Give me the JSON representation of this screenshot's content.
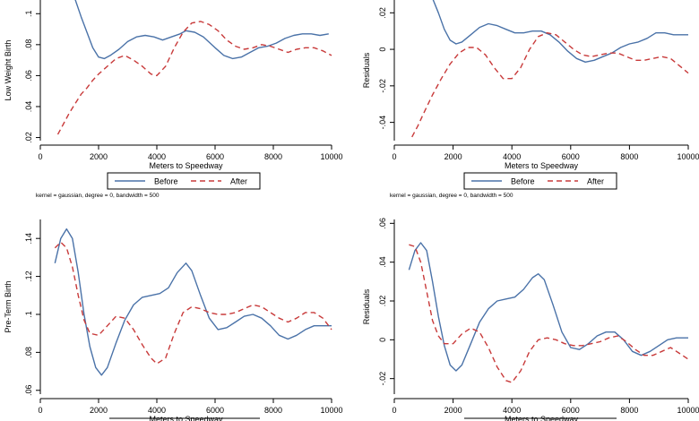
{
  "colors": {
    "before": "#4a72a8",
    "after": "#c83a3a",
    "axis": "#000000",
    "legend_border": "#000000"
  },
  "chart_data": [
    {
      "type": "line",
      "ylabel": "Low Weight Birth",
      "xlabel": "Meters to Speedway",
      "xlim": [
        0,
        10000
      ],
      "ylim": [
        0.018,
        0.11
      ],
      "xticks": [
        0,
        2000,
        4000,
        6000,
        8000,
        10000
      ],
      "xtick_labels": [
        "0",
        "2000",
        "4000",
        "6000",
        "8000",
        "10000"
      ],
      "yticks": [
        0.02,
        0.04,
        0.06,
        0.08,
        0.1
      ],
      "ytick_labels": [
        ".02",
        ".04",
        ".06",
        ".08",
        ".1"
      ],
      "legend": {
        "entries": [
          "Before",
          "After"
        ]
      },
      "note": "kernel = gaussian, degree = 0, bandwidth = 500",
      "series": [
        {
          "name": "Before",
          "style": "solid",
          "x": [
            1200,
            1400,
            1600,
            1800,
            2000,
            2200,
            2400,
            2700,
            3000,
            3300,
            3600,
            3900,
            4200,
            4500,
            4800,
            5000,
            5300,
            5600,
            6000,
            6300,
            6600,
            6900,
            7200,
            7500,
            7800,
            8100,
            8400,
            8700,
            9000,
            9300,
            9600,
            9900
          ],
          "y": [
            0.109,
            0.098,
            0.088,
            0.078,
            0.072,
            0.071,
            0.073,
            0.077,
            0.082,
            0.085,
            0.086,
            0.085,
            0.083,
            0.085,
            0.087,
            0.089,
            0.088,
            0.085,
            0.078,
            0.073,
            0.071,
            0.072,
            0.075,
            0.078,
            0.079,
            0.081,
            0.084,
            0.086,
            0.087,
            0.087,
            0.086,
            0.087
          ]
        },
        {
          "name": "After",
          "style": "dashed",
          "x": [
            600,
            800,
            1000,
            1200,
            1400,
            1600,
            1800,
            2000,
            2300,
            2600,
            2900,
            3200,
            3500,
            3800,
            4000,
            4300,
            4600,
            4900,
            5200,
            5500,
            5800,
            6100,
            6400,
            6700,
            7000,
            7300,
            7600,
            7900,
            8200,
            8500,
            8800,
            9100,
            9400,
            9700,
            10000
          ],
          "y": [
            0.022,
            0.029,
            0.036,
            0.042,
            0.048,
            0.052,
            0.057,
            0.061,
            0.066,
            0.071,
            0.073,
            0.07,
            0.066,
            0.061,
            0.06,
            0.066,
            0.078,
            0.088,
            0.094,
            0.095,
            0.093,
            0.089,
            0.083,
            0.079,
            0.077,
            0.078,
            0.08,
            0.079,
            0.077,
            0.075,
            0.077,
            0.078,
            0.078,
            0.076,
            0.073
          ]
        }
      ]
    },
    {
      "type": "line",
      "ylabel": "Residuals",
      "xlabel": "Meters to Speedway",
      "xlim": [
        0,
        10000
      ],
      "ylim": [
        -0.05,
        0.028
      ],
      "xticks": [
        0,
        2000,
        4000,
        6000,
        8000,
        10000
      ],
      "xtick_labels": [
        "0",
        "2000",
        "4000",
        "6000",
        "8000",
        "10000"
      ],
      "yticks": [
        -0.04,
        -0.02,
        0,
        0.02
      ],
      "ytick_labels": [
        "-.04",
        "-.02",
        "0",
        ".02"
      ],
      "legend": {
        "entries": [
          "Before",
          "After"
        ]
      },
      "note": "kernel = gaussian, degree = 0, bandwidth = 500",
      "series": [
        {
          "name": "Before",
          "style": "solid",
          "x": [
            1300,
            1500,
            1700,
            1900,
            2100,
            2300,
            2600,
            2900,
            3200,
            3500,
            3800,
            4100,
            4400,
            4700,
            5000,
            5300,
            5600,
            5900,
            6200,
            6500,
            6800,
            7100,
            7400,
            7700,
            8000,
            8300,
            8600,
            8900,
            9200,
            9500,
            9800,
            10000
          ],
          "y": [
            0.028,
            0.02,
            0.011,
            0.005,
            0.003,
            0.004,
            0.008,
            0.012,
            0.014,
            0.013,
            0.011,
            0.009,
            0.009,
            0.01,
            0.01,
            0.008,
            0.004,
            -0.001,
            -0.005,
            -0.007,
            -0.006,
            -0.004,
            -0.002,
            0.001,
            0.003,
            0.004,
            0.006,
            0.009,
            0.009,
            0.008,
            0.008,
            0.008
          ]
        },
        {
          "name": "After",
          "style": "dashed",
          "x": [
            600,
            800,
            1000,
            1300,
            1600,
            1900,
            2200,
            2500,
            2800,
            3100,
            3400,
            3700,
            4000,
            4300,
            4600,
            4900,
            5200,
            5500,
            5800,
            6100,
            6400,
            6700,
            7000,
            7300,
            7600,
            7900,
            8200,
            8500,
            8800,
            9100,
            9400,
            9700,
            10000
          ],
          "y": [
            -0.048,
            -0.042,
            -0.035,
            -0.025,
            -0.016,
            -0.008,
            -0.002,
            0.001,
            0.001,
            -0.003,
            -0.01,
            -0.016,
            -0.016,
            -0.01,
            0.0,
            0.007,
            0.009,
            0.008,
            0.004,
            0.0,
            -0.003,
            -0.004,
            -0.003,
            -0.002,
            -0.002,
            -0.004,
            -0.006,
            -0.006,
            -0.005,
            -0.004,
            -0.005,
            -0.009,
            -0.013
          ]
        }
      ]
    },
    {
      "type": "line",
      "ylabel": "Pre-Term Birth",
      "xlabel": "Meters to Speedway",
      "xlim": [
        0,
        10000
      ],
      "ylim": [
        0.058,
        0.15
      ],
      "xticks": [
        0,
        2000,
        4000,
        6000,
        8000,
        10000
      ],
      "xtick_labels": [
        "0",
        "2000",
        "4000",
        "6000",
        "8000",
        "10000"
      ],
      "yticks": [
        0.06,
        0.08,
        0.1,
        0.12,
        0.14
      ],
      "ytick_labels": [
        ".06",
        ".08",
        ".1",
        ".12",
        ".14"
      ],
      "series": [
        {
          "name": "Before",
          "style": "solid",
          "x": [
            500,
            700,
            900,
            1100,
            1300,
            1500,
            1700,
            1900,
            2100,
            2300,
            2600,
            2900,
            3200,
            3500,
            3800,
            4100,
            4400,
            4700,
            5000,
            5200,
            5500,
            5800,
            6100,
            6400,
            6700,
            7000,
            7300,
            7600,
            7900,
            8200,
            8500,
            8800,
            9100,
            9400,
            9700,
            10000
          ],
          "y": [
            0.127,
            0.14,
            0.145,
            0.14,
            0.122,
            0.1,
            0.083,
            0.072,
            0.068,
            0.072,
            0.085,
            0.097,
            0.105,
            0.109,
            0.11,
            0.111,
            0.114,
            0.122,
            0.127,
            0.123,
            0.11,
            0.098,
            0.092,
            0.093,
            0.096,
            0.099,
            0.1,
            0.098,
            0.094,
            0.089,
            0.087,
            0.089,
            0.092,
            0.094,
            0.094,
            0.094
          ]
        },
        {
          "name": "After",
          "style": "dashed",
          "x": [
            500,
            700,
            900,
            1100,
            1300,
            1500,
            1700,
            2000,
            2300,
            2600,
            2900,
            3200,
            3500,
            3800,
            4000,
            4300,
            4600,
            4900,
            5200,
            5500,
            5800,
            6100,
            6400,
            6700,
            7000,
            7300,
            7600,
            7900,
            8200,
            8500,
            8800,
            9100,
            9400,
            9700,
            10000
          ],
          "y": [
            0.135,
            0.138,
            0.135,
            0.125,
            0.11,
            0.097,
            0.09,
            0.089,
            0.094,
            0.099,
            0.098,
            0.092,
            0.084,
            0.077,
            0.074,
            0.077,
            0.09,
            0.101,
            0.104,
            0.103,
            0.101,
            0.1,
            0.1,
            0.101,
            0.103,
            0.105,
            0.104,
            0.101,
            0.098,
            0.096,
            0.098,
            0.101,
            0.101,
            0.098,
            0.092
          ]
        }
      ]
    },
    {
      "type": "line",
      "ylabel": "Residuals",
      "xlabel": "Meters to Speedway",
      "xlim": [
        0,
        10000
      ],
      "ylim": [
        -0.028,
        0.062
      ],
      "xticks": [
        0,
        2000,
        4000,
        6000,
        8000,
        10000
      ],
      "xtick_labels": [
        "0",
        "2000",
        "4000",
        "6000",
        "8000",
        "10000"
      ],
      "yticks": [
        -0.02,
        0,
        0.02,
        0.04,
        0.06
      ],
      "ytick_labels": [
        "-.02",
        "0",
        ".02",
        ".04",
        ".06"
      ],
      "series": [
        {
          "name": "Before",
          "style": "solid",
          "x": [
            500,
            700,
            900,
            1100,
            1300,
            1500,
            1700,
            1900,
            2100,
            2300,
            2600,
            2900,
            3200,
            3500,
            3800,
            4100,
            4400,
            4700,
            4900,
            5100,
            5400,
            5700,
            6000,
            6300,
            6600,
            6900,
            7200,
            7500,
            7800,
            8100,
            8400,
            8700,
            9000,
            9300,
            9600,
            10000
          ],
          "y": [
            0.036,
            0.046,
            0.05,
            0.046,
            0.03,
            0.012,
            -0.003,
            -0.013,
            -0.016,
            -0.013,
            -0.002,
            0.009,
            0.016,
            0.02,
            0.021,
            0.022,
            0.026,
            0.032,
            0.034,
            0.031,
            0.018,
            0.004,
            -0.004,
            -0.005,
            -0.002,
            0.002,
            0.004,
            0.004,
            0.0,
            -0.006,
            -0.008,
            -0.006,
            -0.003,
            0.0,
            0.001,
            0.001
          ]
        },
        {
          "name": "After",
          "style": "dashed",
          "x": [
            500,
            700,
            900,
            1100,
            1300,
            1500,
            1700,
            2000,
            2300,
            2600,
            2900,
            3200,
            3500,
            3800,
            4000,
            4300,
            4600,
            4900,
            5200,
            5500,
            5800,
            6100,
            6400,
            6700,
            7000,
            7300,
            7600,
            7900,
            8200,
            8500,
            8800,
            9100,
            9400,
            9700,
            10000
          ],
          "y": [
            0.049,
            0.048,
            0.04,
            0.025,
            0.01,
            0.002,
            -0.002,
            -0.002,
            0.003,
            0.006,
            0.004,
            -0.004,
            -0.014,
            -0.021,
            -0.022,
            -0.016,
            -0.006,
            0.0,
            0.001,
            0.0,
            -0.002,
            -0.003,
            -0.003,
            -0.002,
            -0.001,
            0.001,
            0.002,
            -0.001,
            -0.005,
            -0.008,
            -0.008,
            -0.006,
            -0.004,
            -0.007,
            -0.01
          ]
        }
      ]
    }
  ]
}
